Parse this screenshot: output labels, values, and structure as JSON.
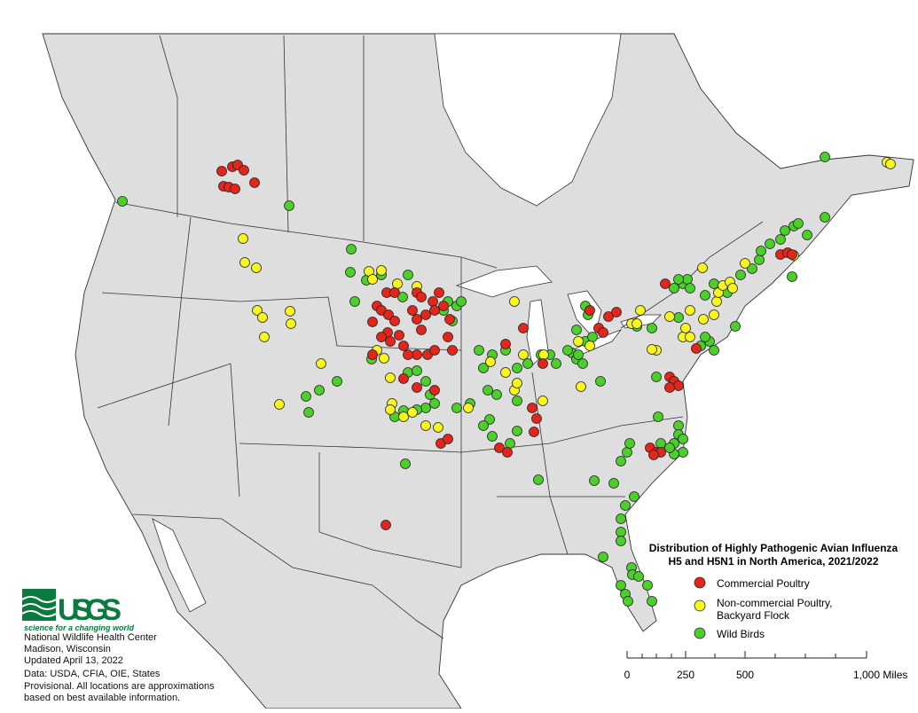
{
  "title": [
    "Distribution of Highly Pathogenic Avian Influenza",
    "H5 and H5N1 in North America, 2021/2022"
  ],
  "legend": [
    {
      "label": "Commercial Poultry",
      "color": "#e3261c"
    },
    {
      "label": [
        "Non-commercial Poultry,",
        "Backyard Flock"
      ],
      "color": "#f7f51f"
    },
    {
      "label": "Wild Birds",
      "color": "#4ccf2a"
    }
  ],
  "logo": {
    "name": "USGS",
    "tagline": "science for a changing world"
  },
  "credits": [
    "National Wildlife Health Center",
    "Madison, Wisconsin",
    "Updated April 13, 2022",
    "Data: USDA, CFIA, OIE, States",
    "Provisional. All locations are approximations",
    "based on best available information."
  ],
  "scale_bar": {
    "labels": [
      "0",
      "250",
      "500",
      "1,000 Miles"
    ]
  }
}
